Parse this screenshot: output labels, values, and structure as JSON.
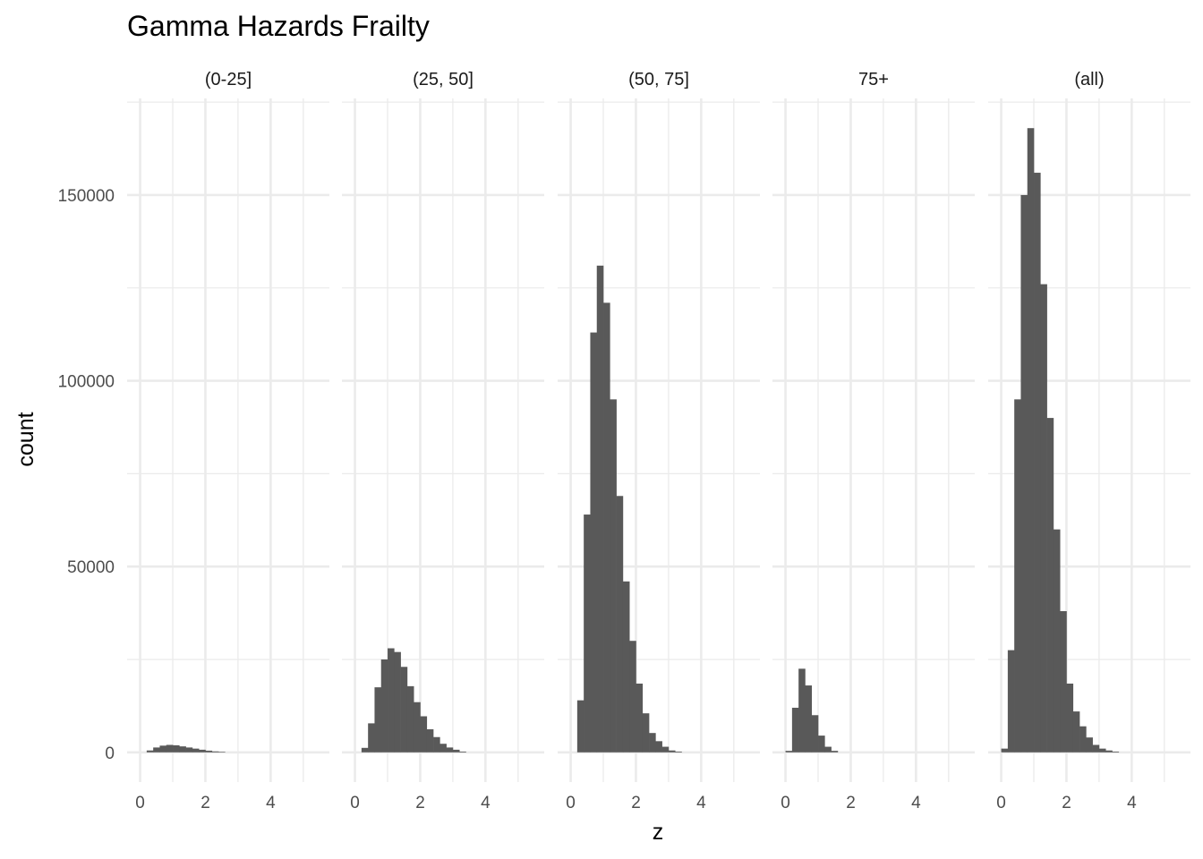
{
  "chart_data": {
    "type": "bar",
    "title": "Gamma Hazards Frailty",
    "xlabel": "z",
    "ylabel": "count",
    "xlim": [
      -0.4,
      5.8
    ],
    "ylim": [
      -8000,
      176000
    ],
    "x_ticks": [
      "0",
      "2",
      "4"
    ],
    "x_tick_values": [
      0,
      2,
      4
    ],
    "y_ticks": [
      "0",
      "50000",
      "100000",
      "150000"
    ],
    "y_tick_values": [
      0,
      50000,
      100000,
      150000
    ],
    "grid": true,
    "bar_color": "#595959",
    "bin_width": 0.2,
    "bin_starts": [
      0.0,
      0.2,
      0.4,
      0.6,
      0.8,
      1.0,
      1.2,
      1.4,
      1.6,
      1.8,
      2.0,
      2.2,
      2.4,
      2.6,
      2.8,
      3.0,
      3.2,
      3.4,
      3.6
    ],
    "facets": [
      {
        "name": "(0-25]",
        "values": [
          0,
          500,
          1300,
          1800,
          2000,
          1900,
          1600,
          1300,
          1000,
          700,
          450,
          250,
          150,
          0,
          0,
          0,
          0,
          0,
          0
        ]
      },
      {
        "name": "(25, 50]",
        "values": [
          0,
          1200,
          7800,
          17500,
          25000,
          28000,
          27000,
          23000,
          17800,
          13500,
          9700,
          6200,
          4100,
          2300,
          1300,
          700,
          200,
          0,
          0
        ]
      },
      {
        "name": "(50, 75]",
        "values": [
          0,
          14000,
          64000,
          113000,
          131000,
          121000,
          95000,
          69000,
          46000,
          30000,
          18500,
          10500,
          5200,
          3000,
          1500,
          500,
          200,
          0,
          0
        ]
      },
      {
        "name": "75+",
        "values": [
          400,
          12000,
          22500,
          18000,
          10000,
          4500,
          1500,
          400,
          0,
          0,
          0,
          0,
          0,
          0,
          0,
          0,
          0,
          0,
          0
        ]
      },
      {
        "name": "(all)",
        "values": [
          1000,
          27500,
          95000,
          150000,
          168000,
          156000,
          126000,
          90000,
          60000,
          38000,
          18500,
          11000,
          7000,
          4000,
          2000,
          1000,
          500,
          200,
          0
        ]
      }
    ]
  }
}
